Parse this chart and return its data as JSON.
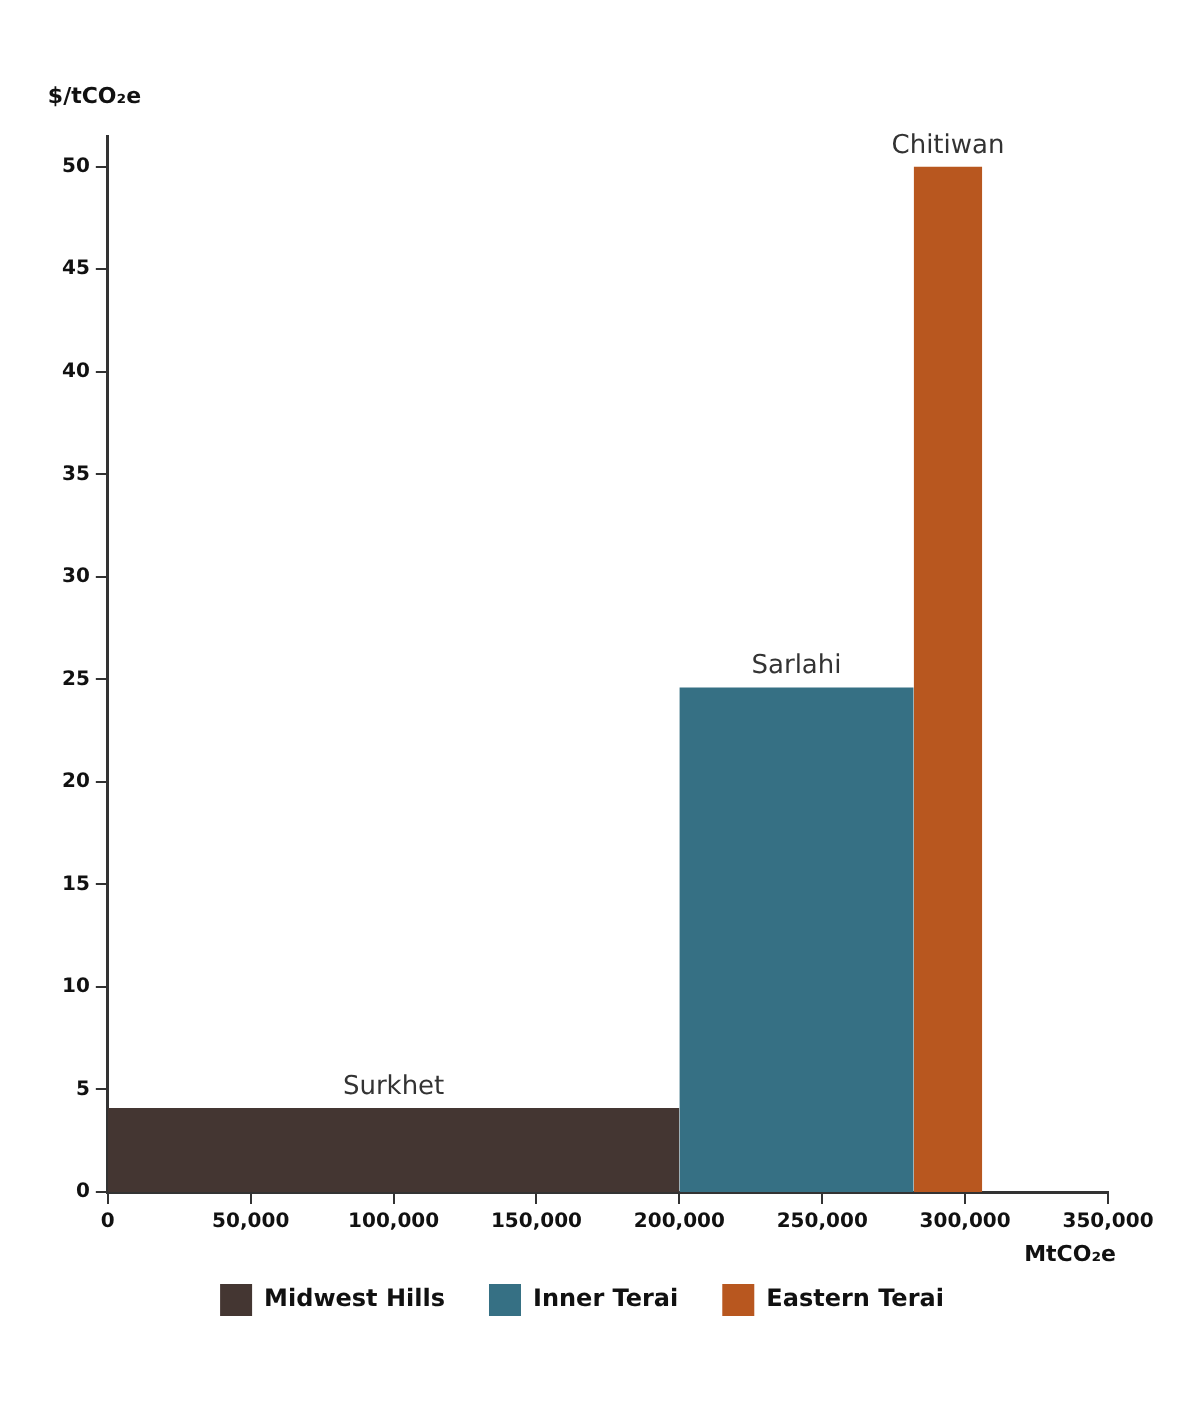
{
  "chart_data": {
    "type": "histogram",
    "xlabel": "MtCO₂e",
    "ylabel": "$/tCO₂e",
    "bins": [
      0,
      200000,
      282000,
      306000
    ],
    "series": [
      {
        "name": "Midwest Hills",
        "color": "#443632",
        "values": [
          4.1,
          null,
          null
        ]
      },
      {
        "name": "Inner Terai",
        "color": "#367084",
        "values": [
          null,
          24.6,
          null
        ]
      },
      {
        "name": "Eastern Terai",
        "color": "#b8571f",
        "values": [
          null,
          null,
          50
        ]
      }
    ],
    "annotations": [
      {
        "text": "Surkhet",
        "x": 100000,
        "y": 4.1
      },
      {
        "text": "Sarlahi",
        "x": 241000,
        "y": 24.6
      },
      {
        "text": "Chitiwan",
        "x": 294000,
        "y": 50
      }
    ],
    "xlim": [
      0,
      350000
    ],
    "ylim": [
      0,
      51.5
    ],
    "xticks": [
      0,
      {
        "value": 50000,
        "label": "50,000"
      },
      {
        "value": 100000,
        "label": "100,000"
      },
      {
        "value": 150000,
        "label": "150,000"
      },
      {
        "value": 200000,
        "label": "200,000"
      },
      {
        "value": 250000,
        "label": "250,000"
      },
      {
        "value": 300000,
        "label": "300,000"
      },
      {
        "value": 350000,
        "label": "350,000"
      }
    ],
    "yticks": [
      0,
      5,
      10,
      15,
      20,
      25,
      30,
      35,
      40,
      45,
      50
    ],
    "grid": false,
    "legend": "bottom"
  }
}
